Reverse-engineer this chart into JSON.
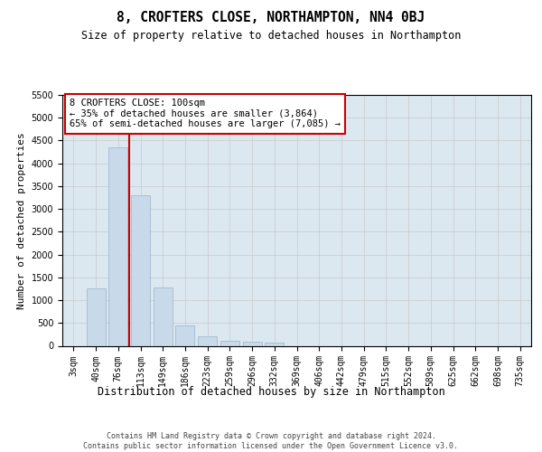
{
  "title": "8, CROFTERS CLOSE, NORTHAMPTON, NN4 0BJ",
  "subtitle": "Size of property relative to detached houses in Northampton",
  "xlabel": "Distribution of detached houses by size in Northampton",
  "ylabel": "Number of detached properties",
  "footer_line1": "Contains HM Land Registry data © Crown copyright and database right 2024.",
  "footer_line2": "Contains public sector information licensed under the Open Government Licence v3.0.",
  "bar_labels": [
    "3sqm",
    "40sqm",
    "76sqm",
    "113sqm",
    "149sqm",
    "186sqm",
    "223sqm",
    "259sqm",
    "296sqm",
    "332sqm",
    "369sqm",
    "406sqm",
    "442sqm",
    "479sqm",
    "515sqm",
    "552sqm",
    "589sqm",
    "625sqm",
    "662sqm",
    "698sqm",
    "735sqm"
  ],
  "bar_values": [
    0,
    1250,
    4350,
    3300,
    1280,
    450,
    200,
    100,
    80,
    60,
    0,
    0,
    0,
    0,
    0,
    0,
    0,
    0,
    0,
    0,
    0
  ],
  "bar_color": "#c8d9ea",
  "bar_edgecolor": "#9ab4cc",
  "vline_x": 2.5,
  "vline_color": "#cc0000",
  "annotation_text": "8 CROFTERS CLOSE: 100sqm\n← 35% of detached houses are smaller (3,864)\n65% of semi-detached houses are larger (7,085) →",
  "ylim_max": 5500,
  "yticks": [
    0,
    500,
    1000,
    1500,
    2000,
    2500,
    3000,
    3500,
    4000,
    4500,
    5000,
    5500
  ],
  "ax_bg_color": "#dce8f0",
  "fig_bg_color": "#ffffff",
  "grid_color": "#c8c8c8"
}
